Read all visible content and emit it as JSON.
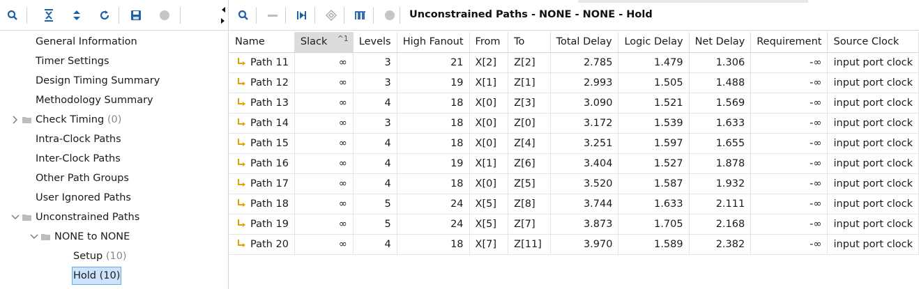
{
  "left_toolbar": {
    "icons": [
      "search-icon",
      "collapse-all-icon",
      "expand-all-icon",
      "refresh-icon",
      "save-icon",
      "status-circle-icon"
    ]
  },
  "tree": {
    "items": [
      {
        "label": "General Information"
      },
      {
        "label": "Timer Settings"
      },
      {
        "label": "Design Timing Summary"
      },
      {
        "label": "Methodology Summary"
      },
      {
        "label": "Check Timing",
        "count": "(0)"
      },
      {
        "label": "Intra-Clock Paths"
      },
      {
        "label": "Inter-Clock Paths"
      },
      {
        "label": "Other Path Groups"
      },
      {
        "label": "User Ignored Paths"
      },
      {
        "label": "Unconstrained Paths"
      },
      {
        "label": "NONE to NONE"
      },
      {
        "label": "Setup",
        "count": "(10)"
      },
      {
        "label": "Hold (10)"
      }
    ]
  },
  "right_toolbar": {
    "title": "Unconstrained Paths - NONE - NONE - Hold",
    "icons": [
      "search-icon",
      "minus-icon",
      "schematic-icon",
      "highlight-icon",
      "waveform-icon",
      "status-circle-icon"
    ]
  },
  "table": {
    "columns": [
      "Name",
      "Slack",
      "Levels",
      "High Fanout",
      "From",
      "To",
      "Total Delay",
      "Logic Delay",
      "Net Delay",
      "Requirement",
      "Source Clock"
    ],
    "sort_indicator": "^1",
    "rows": [
      [
        "Path 11",
        "∞",
        "3",
        "21",
        "X[2]",
        "Z[2]",
        "2.785",
        "1.479",
        "1.306",
        "-∞",
        "input port clock"
      ],
      [
        "Path 12",
        "∞",
        "3",
        "19",
        "X[1]",
        "Z[1]",
        "2.993",
        "1.505",
        "1.488",
        "-∞",
        "input port clock"
      ],
      [
        "Path 13",
        "∞",
        "4",
        "18",
        "X[0]",
        "Z[3]",
        "3.090",
        "1.521",
        "1.569",
        "-∞",
        "input port clock"
      ],
      [
        "Path 14",
        "∞",
        "3",
        "18",
        "X[0]",
        "Z[0]",
        "3.172",
        "1.539",
        "1.633",
        "-∞",
        "input port clock"
      ],
      [
        "Path 15",
        "∞",
        "4",
        "18",
        "X[0]",
        "Z[4]",
        "3.251",
        "1.597",
        "1.655",
        "-∞",
        "input port clock"
      ],
      [
        "Path 16",
        "∞",
        "4",
        "19",
        "X[1]",
        "Z[6]",
        "3.404",
        "1.527",
        "1.878",
        "-∞",
        "input port clock"
      ],
      [
        "Path 17",
        "∞",
        "4",
        "18",
        "X[0]",
        "Z[5]",
        "3.520",
        "1.587",
        "1.932",
        "-∞",
        "input port clock"
      ],
      [
        "Path 18",
        "∞",
        "5",
        "24",
        "X[5]",
        "Z[8]",
        "3.744",
        "1.633",
        "2.111",
        "-∞",
        "input port clock"
      ],
      [
        "Path 19",
        "∞",
        "5",
        "24",
        "X[5]",
        "Z[7]",
        "3.873",
        "1.705",
        "2.168",
        "-∞",
        "input port clock"
      ],
      [
        "Path 20",
        "∞",
        "4",
        "18",
        "X[7]",
        "Z[11]",
        "3.970",
        "1.589",
        "2.382",
        "-∞",
        "input port clock"
      ]
    ]
  },
  "colors": {
    "accent_blue": "#1f5fa8",
    "path_icon": "#e0a400",
    "selection_bg": "#cce4fb",
    "selection_border": "#6aa6e8"
  }
}
